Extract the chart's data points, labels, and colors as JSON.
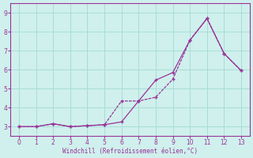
{
  "xlabel": "Windchill (Refroidissement éolien,°C)",
  "background_color": "#cff0ec",
  "grid_color": "#a8ddd8",
  "line_color": "#993399",
  "xlim": [
    -0.5,
    13.5
  ],
  "ylim": [
    2.5,
    9.5
  ],
  "xticks": [
    0,
    1,
    2,
    3,
    4,
    5,
    6,
    7,
    8,
    9,
    10,
    11,
    12,
    13
  ],
  "yticks": [
    3,
    4,
    5,
    6,
    7,
    8,
    9
  ],
  "line1_x": [
    0,
    1,
    2,
    3,
    4,
    5,
    6,
    7,
    8,
    9,
    10,
    11,
    12,
    13
  ],
  "line1_y": [
    3.0,
    3.0,
    3.15,
    3.0,
    3.05,
    3.1,
    3.25,
    4.35,
    5.45,
    5.85,
    7.55,
    8.7,
    6.85,
    5.95
  ],
  "line2_x": [
    0,
    1,
    2,
    3,
    4,
    5,
    6,
    7,
    8,
    9,
    10,
    11,
    12,
    13
  ],
  "line2_y": [
    3.0,
    3.0,
    3.15,
    3.0,
    3.05,
    3.1,
    4.35,
    4.35,
    4.55,
    5.5,
    7.55,
    8.7,
    6.85,
    5.95
  ]
}
